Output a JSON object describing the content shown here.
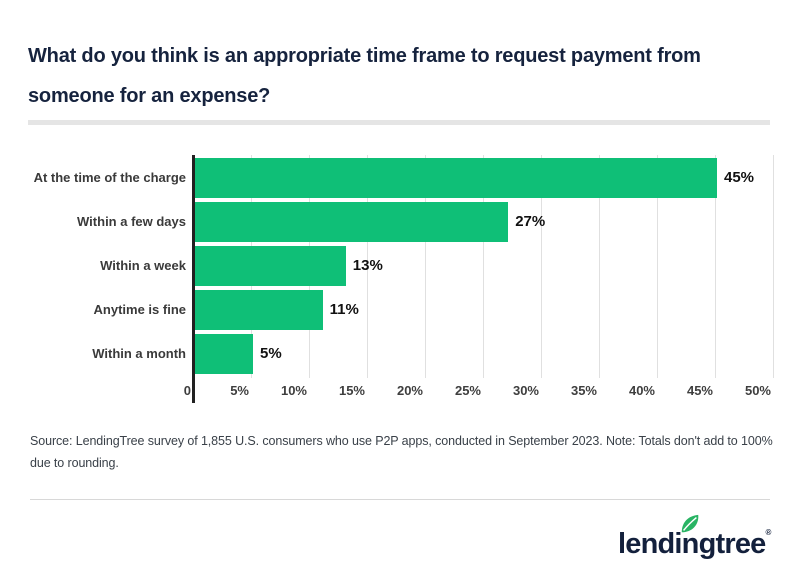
{
  "title": {
    "line1": "What do you think is an appropriate time frame to request payment from",
    "line2": "someone for an expense?"
  },
  "source_note": "Source: LendingTree survey of 1,855 U.S. consumers who use P2P apps, conducted in September 2023. Note: Totals don't add to 100% due to rounding.",
  "logo": {
    "text": "lendingtree",
    "registered": "®"
  },
  "colors": {
    "bar_green": "#0fbf77",
    "brand_navy": "#16233e",
    "leaf_green": "#29b464",
    "gridline": "#e0e0e0",
    "axis": "#212121"
  },
  "chart_data": {
    "type": "bar",
    "orientation": "horizontal",
    "title": "What do you think is an appropriate time frame to request payment from someone for an expense?",
    "categories": [
      "At the time of the charge",
      "Within a few days",
      "Within a week",
      "Anytime is fine",
      "Within a month"
    ],
    "values": [
      45,
      27,
      13,
      11,
      5
    ],
    "value_labels": [
      "45%",
      "27%",
      "13%",
      "11%",
      "5%"
    ],
    "xlabel": "",
    "ylabel": "",
    "xlim": [
      0,
      50
    ],
    "x_tick_values": [
      0,
      5,
      10,
      15,
      20,
      25,
      30,
      35,
      40,
      45,
      50
    ],
    "x_tick_labels": [
      "0",
      "5%",
      "10%",
      "15%",
      "20%",
      "25%",
      "30%",
      "35%",
      "40%",
      "45%",
      "50%"
    ],
    "grid": true,
    "legend": "none",
    "bar_color": "#0fbf77"
  }
}
